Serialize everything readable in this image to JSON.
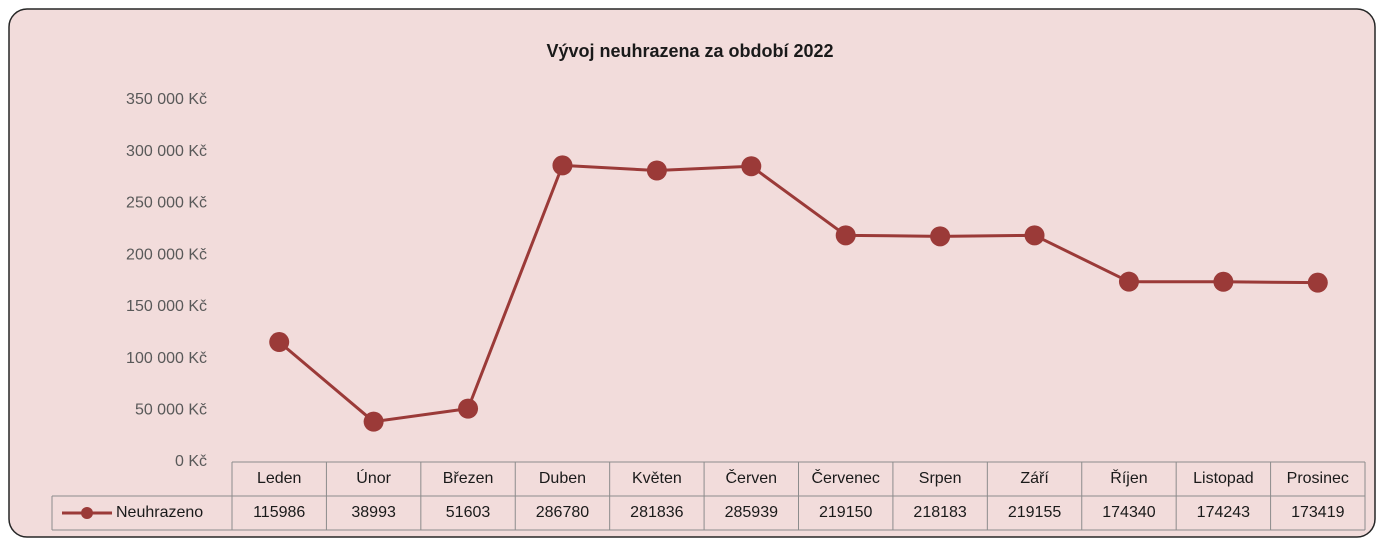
{
  "chart_data": {
    "type": "line",
    "title": "Vývoj neuhrazena za období 2022",
    "categories": [
      "Leden",
      "Únor",
      "Březen",
      "Duben",
      "Květen",
      "Červen",
      "Červenec",
      "Srpen",
      "Září",
      "Říjen",
      "Listopad",
      "Prosinec"
    ],
    "series": [
      {
        "name": "Neuhrazeno",
        "color": "#9b3a38",
        "values": [
          115986,
          38993,
          51603,
          286780,
          281836,
          285939,
          219150,
          218183,
          219155,
          174340,
          174243,
          173419
        ]
      }
    ],
    "ylim": [
      0,
      350000
    ],
    "yticks": [
      {
        "value": 0,
        "label": "0 Kč"
      },
      {
        "value": 50000,
        "label": "50 000 Kč"
      },
      {
        "value": 100000,
        "label": "100 000 Kč"
      },
      {
        "value": 150000,
        "label": "150 000 Kč"
      },
      {
        "value": 200000,
        "label": "200 000 Kč"
      },
      {
        "value": 250000,
        "label": "250 000 Kč"
      },
      {
        "value": 300000,
        "label": "300 000 Kč"
      },
      {
        "value": 350000,
        "label": "350 000 Kč"
      }
    ],
    "grid": false
  }
}
